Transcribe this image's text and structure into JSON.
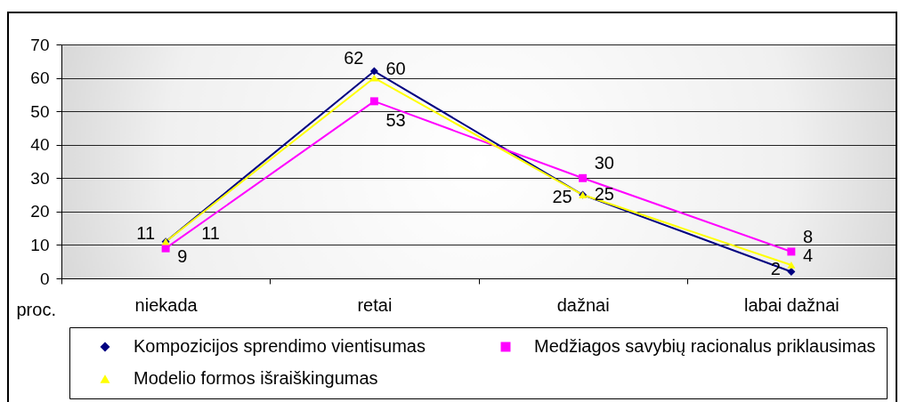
{
  "chart_data": {
    "type": "line",
    "ylabel": "proc.",
    "categories": [
      "niekada",
      "retai",
      "dažnai",
      "labai dažnai"
    ],
    "series": [
      {
        "name": "Kompozicijos sprendimo vientisumas",
        "color": "#000080",
        "marker": "diamond",
        "values": [
          11,
          62,
          25,
          2
        ]
      },
      {
        "name": "Medžiagos savybių racionalus priklausimas",
        "color": "#ff00ff",
        "marker": "square",
        "values": [
          9,
          53,
          30,
          8
        ]
      },
      {
        "name": "Modelio formos išraiškingumas",
        "color": "#ffff00",
        "marker": "triangle",
        "values": [
          11,
          60,
          25,
          4
        ]
      }
    ],
    "ylim": [
      0,
      70
    ],
    "yticks": [
      0,
      10,
      20,
      30,
      40,
      50,
      60,
      70
    ],
    "grid": "y",
    "legend": "bottom",
    "line_style": "solid",
    "data_labels": true
  }
}
